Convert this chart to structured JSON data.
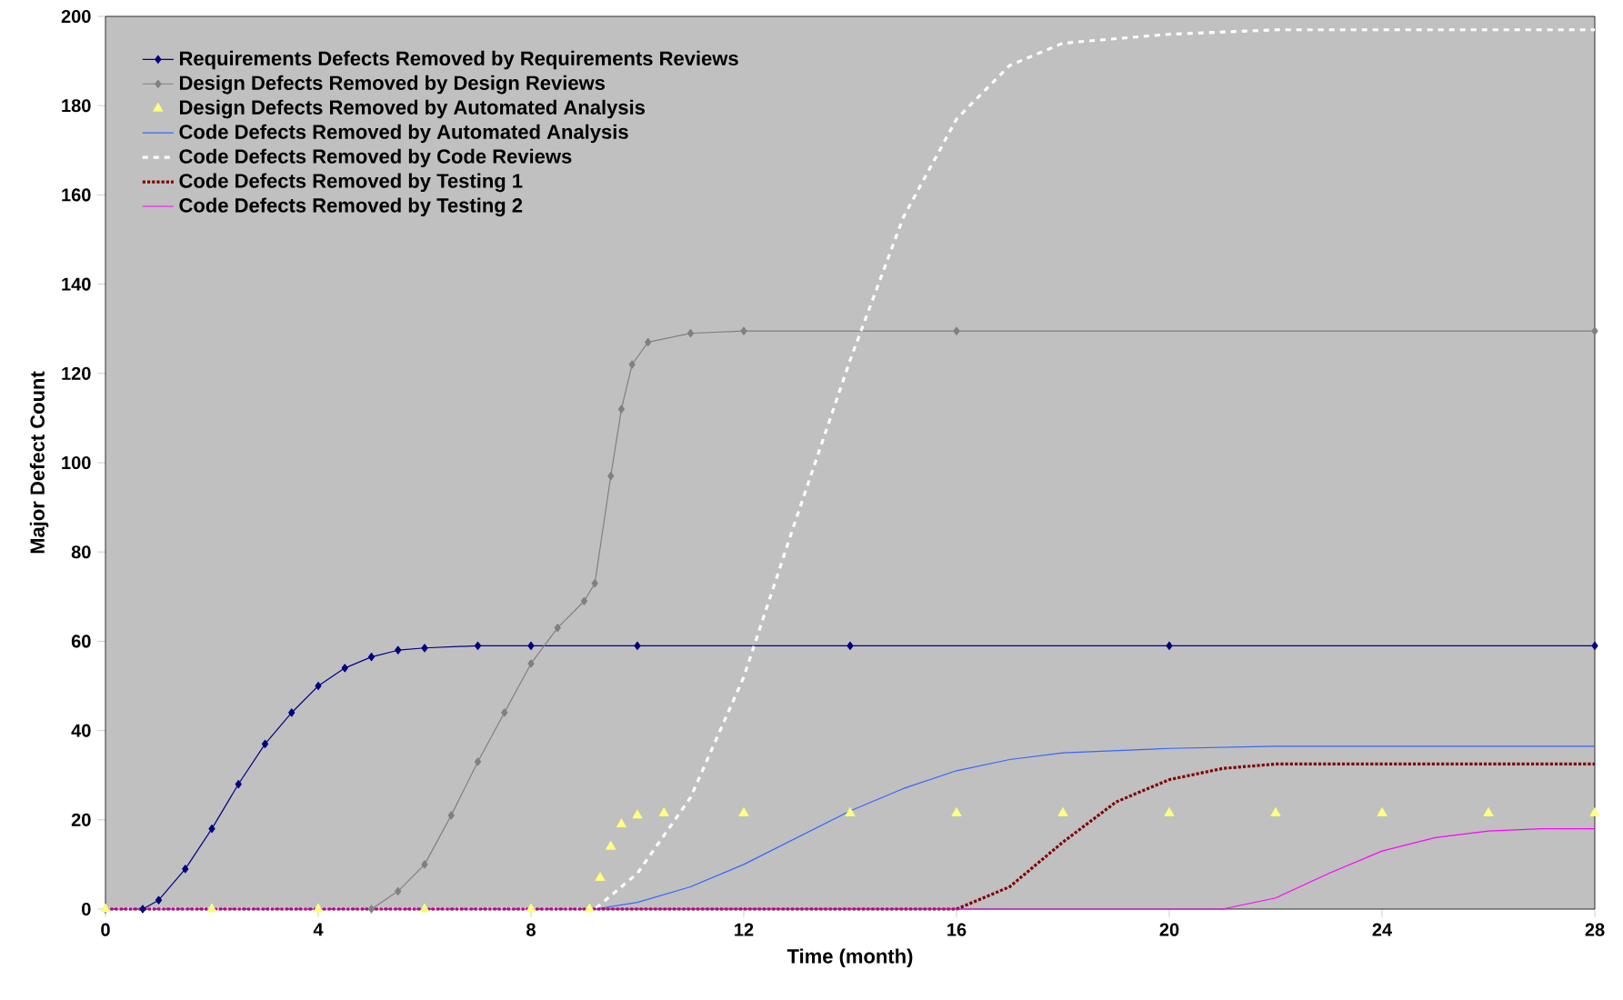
{
  "chart_data": {
    "type": "line",
    "xlabel": "Time (month)",
    "ylabel": "Major Defect Count",
    "xlim": [
      0,
      28
    ],
    "ylim": [
      0,
      200
    ],
    "xticks": [
      0,
      4,
      8,
      12,
      16,
      20,
      24,
      28
    ],
    "yticks": [
      0,
      20,
      40,
      60,
      80,
      100,
      120,
      140,
      160,
      180,
      200
    ],
    "grid": false,
    "legend": "top left",
    "series": [
      {
        "name": "Requirements Defects Removed by Requirements Reviews",
        "color": "#000080",
        "marker": "diamond",
        "line_style": "solid",
        "x": [
          0,
          0.7,
          1,
          1.5,
          2,
          2.5,
          3,
          3.5,
          4,
          4.5,
          5,
          5.5,
          6,
          7,
          8,
          10,
          14,
          20,
          28
        ],
        "values": [
          0,
          0,
          2,
          9,
          18,
          28,
          37,
          44,
          50,
          54,
          56.5,
          58,
          58.5,
          59,
          59,
          59,
          59,
          59,
          59
        ]
      },
      {
        "name": "Design Defects Removed by Design Reviews",
        "color": "#808080",
        "marker": "diamond",
        "line_style": "solid",
        "x": [
          0,
          5,
          5.5,
          6,
          6.5,
          7,
          7.5,
          8,
          8.5,
          9,
          9.2,
          9.5,
          9.7,
          9.9,
          10.2,
          11,
          12,
          16,
          28
        ],
        "values": [
          0,
          0,
          4,
          10,
          21,
          33,
          44,
          55,
          63,
          69,
          73,
          97,
          112,
          122,
          127,
          129,
          129.5,
          129.5,
          129.5
        ]
      },
      {
        "name": "Design Defects Removed by Automated Analysis",
        "type": "scatter",
        "color": "#ffff80",
        "marker": "triangle",
        "x": [
          0,
          2,
          4,
          6,
          8,
          9.1,
          9.3,
          9.5,
          9.7,
          10,
          10.5,
          12,
          14,
          16,
          18,
          20,
          22,
          24,
          26,
          28
        ],
        "values": [
          0,
          0,
          0,
          0,
          0,
          0,
          7,
          14,
          19,
          21,
          21.5,
          21.5,
          21.5,
          21.5,
          21.5,
          21.5,
          21.5,
          21.5,
          21.5,
          21.5
        ]
      },
      {
        "name": "Code Defects Removed by Automated Analysis",
        "color": "#3366ff",
        "marker": "none",
        "line_style": "solid",
        "x": [
          0,
          9.2,
          10,
          11,
          12,
          13,
          14,
          15,
          16,
          17,
          18,
          20,
          22,
          28
        ],
        "values": [
          0,
          0,
          1.5,
          5,
          10,
          16,
          22,
          27,
          31,
          33.5,
          35,
          36,
          36.5,
          36.5
        ]
      },
      {
        "name": "Code Defects Removed by Code Reviews",
        "color": "#ffffff",
        "marker": "none",
        "line_style": "dashed",
        "x": [
          0,
          9.2,
          10,
          11,
          12,
          13,
          14,
          15,
          16,
          17,
          18,
          20,
          22,
          28
        ],
        "values": [
          0,
          0,
          8,
          25,
          52,
          88,
          123,
          155,
          177,
          189,
          194,
          196,
          197,
          197
        ]
      },
      {
        "name": "Code Defects Removed by Testing 1",
        "color": "#800000",
        "marker": "none",
        "line_style": "dotted",
        "x": [
          0,
          16,
          17,
          18,
          19,
          20,
          21,
          22,
          28
        ],
        "values": [
          0,
          0,
          5,
          15,
          24,
          29,
          31.5,
          32.5,
          32.5
        ]
      },
      {
        "name": "Code Defects Removed by Testing 2",
        "color": "#ff00ff",
        "marker": "none",
        "line_style": "solid",
        "x": [
          0,
          21,
          22,
          23,
          24,
          25,
          26,
          27,
          28
        ],
        "values": [
          0,
          0,
          2.5,
          8,
          13,
          16,
          17.5,
          18,
          18
        ]
      }
    ]
  }
}
